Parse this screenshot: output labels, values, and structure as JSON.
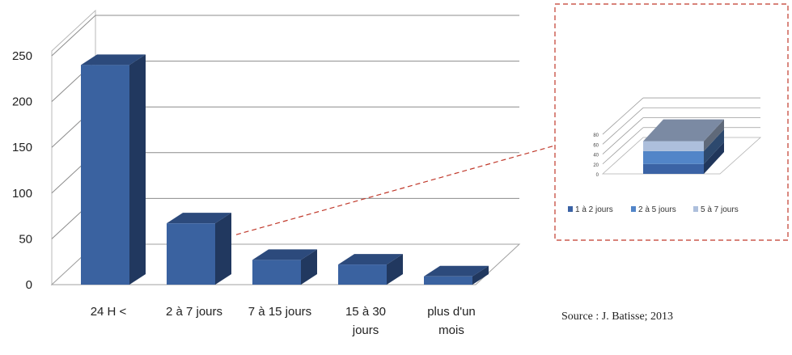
{
  "chart_data": [
    {
      "type": "bar",
      "categories": [
        "24 H <",
        "2 à 7 jours",
        "7 à 15 jours",
        "15 à 30 jours",
        "plus d'un mois"
      ],
      "category_lines": [
        [
          "24 H <"
        ],
        [
          "2 à 7 jours"
        ],
        [
          "7 à 15 jours"
        ],
        [
          "15 à 30",
          "jours"
        ],
        [
          "plus d'un",
          "mois"
        ]
      ],
      "values": [
        240,
        67,
        27,
        22,
        9
      ],
      "yticks": [
        0,
        50,
        100,
        150,
        200,
        250
      ],
      "ylim": [
        0,
        250
      ],
      "grid": true,
      "style": "3d-column",
      "colors": {
        "bar_front": "#3a62a0",
        "bar_side": "#21385f",
        "bar_top": "#2c4a7c"
      }
    },
    {
      "type": "bar",
      "stacked": true,
      "style": "3d-column",
      "categories": [
        ""
      ],
      "yticks": [
        0,
        20,
        40,
        60,
        80
      ],
      "ylim": [
        0,
        80
      ],
      "series": [
        {
          "name": "1 à 2 jours",
          "values": [
            20
          ],
          "color": "#3b63a5"
        },
        {
          "name": "2 à 5 jours",
          "values": [
            26
          ],
          "color": "#5285c8"
        },
        {
          "name": "5 à 7 jours",
          "values": [
            20
          ],
          "color": "#adbfdc"
        }
      ],
      "legend_position": "bottom"
    }
  ],
  "caption": {
    "source": "Source : J. Batisse; 2013"
  }
}
